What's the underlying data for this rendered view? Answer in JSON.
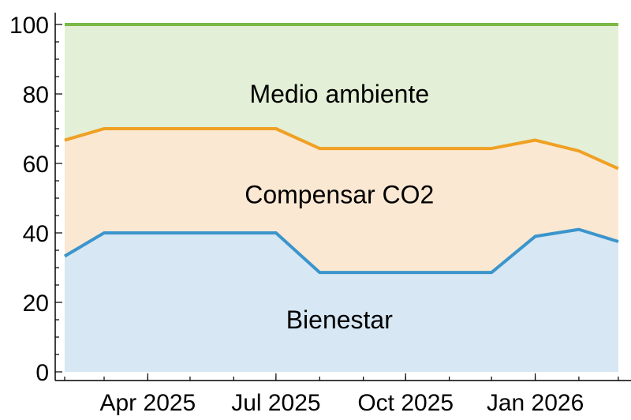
{
  "chart_data": {
    "type": "area",
    "stacked": true,
    "x": [
      "2025-02-01",
      "2025-03-01",
      "2025-04-01",
      "2025-05-01",
      "2025-06-01",
      "2025-07-01",
      "2025-08-01",
      "2025-09-01",
      "2025-10-01",
      "2025-11-01",
      "2025-12-01",
      "2026-01-01",
      "2026-02-01",
      "2026-03-01"
    ],
    "series": [
      {
        "name": "Bienestar",
        "line_color": "#3b95cc",
        "fill_color": "#d7e7f4",
        "values": [
          33.3,
          40,
          40,
          40,
          40,
          40,
          28.6,
          28.6,
          28.6,
          28.6,
          28.6,
          39,
          41,
          37.5
        ]
      },
      {
        "name": "Compensar CO2",
        "line_color": "#f0a023",
        "fill_color": "#fbe8d3",
        "values": [
          66.7,
          70,
          70,
          70,
          70,
          70,
          64.3,
          64.3,
          64.3,
          64.3,
          64.3,
          66.7,
          63.6,
          58.5
        ]
      },
      {
        "name": "Medio ambiente",
        "line_color": "#7ab848",
        "fill_color": "#e3efd6",
        "values": [
          100,
          100,
          100,
          100,
          100,
          100,
          100,
          100,
          100,
          100,
          100,
          100,
          100,
          100
        ]
      }
    ],
    "xlim": [
      "2025-02-01",
      "2026-03-10"
    ],
    "ylim": [
      0,
      102
    ],
    "x_ticks": [
      {
        "date": "2025-04-01",
        "label": "Apr 2025"
      },
      {
        "date": "2025-07-01",
        "label": "Jul 2025"
      },
      {
        "date": "2025-10-01",
        "label": "Oct 2025"
      },
      {
        "date": "2026-01-01",
        "label": "Jan 2026"
      }
    ],
    "y_ticks": [
      0,
      20,
      40,
      60,
      80,
      100
    ],
    "area_labels": [
      {
        "text": "Medio ambiente",
        "date": "2025-08-15",
        "y": 80
      },
      {
        "text": "Compensar CO2",
        "date": "2025-08-15",
        "y": 51
      },
      {
        "text": "Bienestar",
        "date": "2025-08-15",
        "y": 15
      }
    ],
    "grid": false,
    "legend": "none",
    "axis_color": "#000000"
  }
}
